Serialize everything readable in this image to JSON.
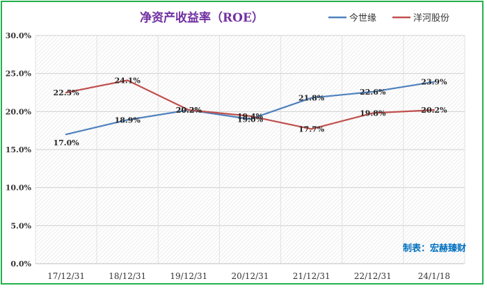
{
  "chart_data": {
    "type": "line",
    "title": "净资产收益率（ROE）",
    "categories": [
      "17/12/31",
      "18/12/31",
      "19/12/31",
      "20/12/31",
      "21/12/31",
      "22/12/31",
      "24/1/18"
    ],
    "series": [
      {
        "name": "今世缘",
        "color": "#4f81bd",
        "values": [
          17.0,
          18.9,
          20.2,
          19.0,
          21.8,
          22.6,
          23.9
        ]
      },
      {
        "name": "洋河股份",
        "color": "#c0504d",
        "values": [
          22.5,
          24.1,
          20.2,
          19.4,
          17.7,
          19.8,
          20.2
        ]
      }
    ],
    "ylim": [
      0,
      30
    ],
    "yticks": [
      "0.0%",
      "5.0%",
      "10.0%",
      "15.0%",
      "20.0%",
      "25.0%",
      "30.0%"
    ],
    "value_labels": [
      [
        "17.0%",
        "18.9%",
        "20.2%",
        "19.0%",
        "21.8%",
        "22.6%",
        "23.9%"
      ],
      [
        "22.5%",
        "24.1%",
        "20.2%",
        "19.4%",
        "17.7%",
        "19.8%",
        "20.2%"
      ]
    ],
    "grid": true,
    "legend": "top-right",
    "watermark": "制表：宏赫臻财"
  }
}
